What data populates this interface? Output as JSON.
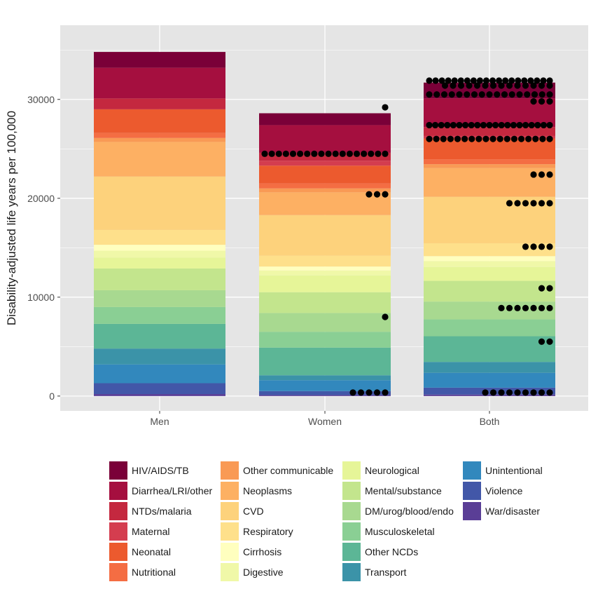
{
  "chart_data": {
    "type": "bar",
    "stacked": true,
    "ylabel": "Disability-adjusted life years per 100,000",
    "xlabel": "",
    "ylim": [
      -1500,
      37500
    ],
    "yticks": [
      0,
      10000,
      20000,
      30000
    ],
    "ytick_labels": [
      "0",
      "10000",
      "20000",
      "30000"
    ],
    "categories": [
      "Men",
      "Women",
      "Both"
    ],
    "grid": true,
    "legend_position": "bottom",
    "series": [
      {
        "name": "HIV/AIDS/TB",
        "color": "#7a0038",
        "values": [
          1600,
          1200,
          1600
        ]
      },
      {
        "name": "Diarrhea/LRI/other",
        "color": "#a50f3f",
        "values": [
          3100,
          2800,
          2900
        ]
      },
      {
        "name": "NTDs/malaria",
        "color": "#c4283f",
        "values": [
          1100,
          800,
          900
        ]
      },
      {
        "name": "Maternal",
        "color": "#d43d4f",
        "values": [
          0,
          500,
          250
        ]
      },
      {
        "name": "Neonatal",
        "color": "#ec5a2e",
        "values": [
          2400,
          1800,
          2100
        ]
      },
      {
        "name": "Nutritional",
        "color": "#f46d43",
        "values": [
          500,
          500,
          500
        ]
      },
      {
        "name": "Other communicable",
        "color": "#f99a55",
        "values": [
          400,
          400,
          400
        ]
      },
      {
        "name": "Neoplasms",
        "color": "#fdb063",
        "values": [
          3500,
          2300,
          2900
        ]
      },
      {
        "name": "CVD",
        "color": "#fdd27c",
        "values": [
          5400,
          4100,
          4700
        ]
      },
      {
        "name": "Respiratory",
        "color": "#fee08b",
        "values": [
          1500,
          1100,
          1300
        ]
      },
      {
        "name": "Cirrhosis",
        "color": "#ffffbf",
        "values": [
          600,
          400,
          500
        ]
      },
      {
        "name": "Digestive",
        "color": "#f0f8a8",
        "values": [
          700,
          500,
          600
        ]
      },
      {
        "name": "Neurological",
        "color": "#e6f598",
        "values": [
          1100,
          1700,
          1400
        ]
      },
      {
        "name": "Mental/substance",
        "color": "#c3e58d",
        "values": [
          2200,
          2100,
          2100
        ]
      },
      {
        "name": "DM/urog/blood/endo",
        "color": "#a8d990",
        "values": [
          1700,
          1900,
          1800
        ]
      },
      {
        "name": "Musculoskeletal",
        "color": "#8acf94",
        "values": [
          1700,
          1600,
          1700
        ]
      },
      {
        "name": "Other NCDs",
        "color": "#5cb696",
        "values": [
          2500,
          2800,
          2600
        ]
      },
      {
        "name": "Transport",
        "color": "#3b93a8",
        "values": [
          1600,
          500,
          1100
        ]
      },
      {
        "name": "Unintentional",
        "color": "#3288bd",
        "values": [
          1900,
          1100,
          1500
        ]
      },
      {
        "name": "Violence",
        "color": "#4257a8",
        "values": [
          1100,
          400,
          700
        ]
      },
      {
        "name": "War/disaster",
        "color": "#5a3e96",
        "values": [
          200,
          100,
          150
        ]
      }
    ],
    "dots": [
      {
        "category": "Women",
        "y": 29200,
        "count": 1
      },
      {
        "category": "Women",
        "y": 24500,
        "count": 18
      },
      {
        "category": "Women",
        "y": 20400,
        "count": 3
      },
      {
        "category": "Women",
        "y": 8000,
        "count": 1
      },
      {
        "category": "Women",
        "y": 350,
        "count": 5
      },
      {
        "category": "Both",
        "y": 31900,
        "count": 20
      },
      {
        "category": "Both",
        "y": 31400,
        "count": 14
      },
      {
        "category": "Both",
        "y": 30500,
        "count": 17
      },
      {
        "category": "Both",
        "y": 29800,
        "count": 3
      },
      {
        "category": "Both",
        "y": 27400,
        "count": 21
      },
      {
        "category": "Both",
        "y": 26000,
        "count": 18
      },
      {
        "category": "Both",
        "y": 22400,
        "count": 3
      },
      {
        "category": "Both",
        "y": 19500,
        "count": 6
      },
      {
        "category": "Both",
        "y": 15100,
        "count": 4
      },
      {
        "category": "Both",
        "y": 10900,
        "count": 2
      },
      {
        "category": "Both",
        "y": 8900,
        "count": 7
      },
      {
        "category": "Both",
        "y": 5500,
        "count": 2
      },
      {
        "category": "Both",
        "y": 350,
        "count": 9
      }
    ]
  },
  "colors": {
    "panel_background": "#e5e5e5",
    "grid": "#ffffff",
    "dot": "#000000"
  }
}
